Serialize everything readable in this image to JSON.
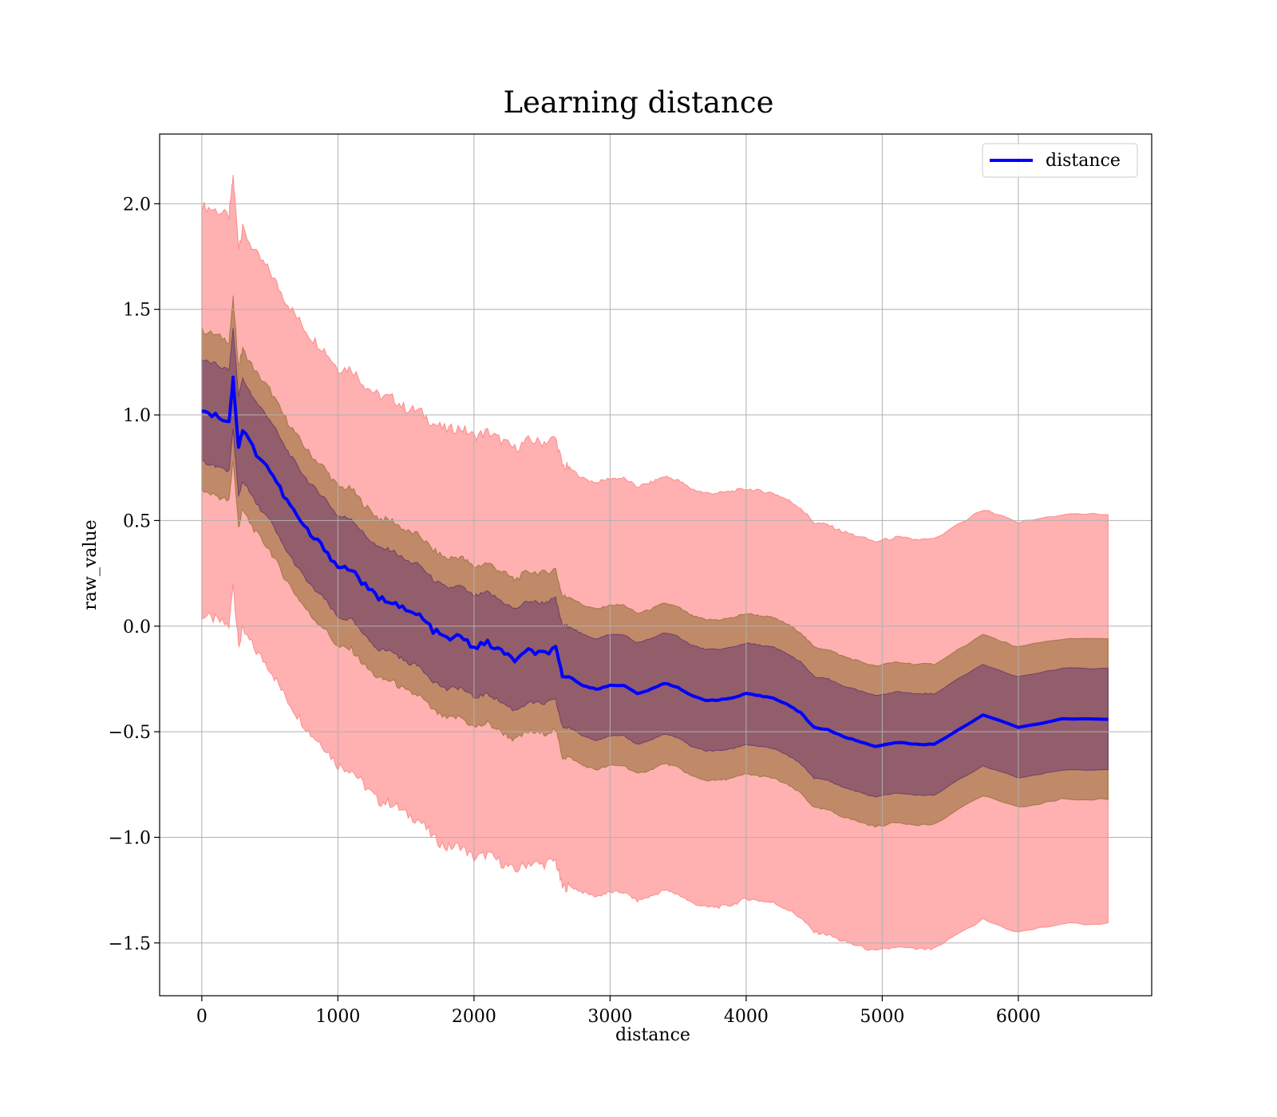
{
  "chart_data": {
    "type": "line",
    "title": "Learning distance",
    "xlabel": "distance",
    "ylabel": "raw_value",
    "xlim": [
      -310,
      6980
    ],
    "ylim": [
      -1.75,
      2.33
    ],
    "x_ticks": [
      0,
      1000,
      2000,
      3000,
      4000,
      5000,
      6000
    ],
    "x_tick_labels": [
      "0",
      "1000",
      "2000",
      "3000",
      "4000",
      "5000",
      "6000"
    ],
    "y_ticks": [
      -1.5,
      -1.0,
      -0.5,
      0.0,
      0.5,
      1.0,
      1.5,
      2.0
    ],
    "y_tick_labels": [
      "−1.5",
      "−1.0",
      "−0.5",
      "0.0",
      "0.5",
      "1.0",
      "1.5",
      "2.0"
    ],
    "grid": true,
    "legend_position": "upper right",
    "colors": {
      "line": "#0000ff",
      "band_outer": "#ff6f6f",
      "band_middle": "#8c6a2e",
      "band_inner": "#5a2a6e",
      "grid": "#b0b0b0"
    },
    "series": [
      {
        "name": "distance",
        "x": [
          0,
          100,
          200,
          230,
          270,
          300,
          400,
          500,
          600,
          700,
          800,
          900,
          1000,
          1100,
          1200,
          1300,
          1400,
          1500,
          1600,
          1700,
          1800,
          1900,
          2000,
          2100,
          2200,
          2300,
          2400,
          2500,
          2600,
          2650,
          2700,
          2800,
          2900,
          3000,
          3100,
          3200,
          3300,
          3400,
          3500,
          3600,
          3700,
          3800,
          3900,
          4000,
          4100,
          4200,
          4300,
          4400,
          4500,
          4600,
          4700,
          4800,
          4950,
          5100,
          5250,
          5380,
          5740,
          6000,
          6320,
          6660
        ],
        "values": [
          1.02,
          1.0,
          0.97,
          1.17,
          0.85,
          0.93,
          0.82,
          0.74,
          0.62,
          0.52,
          0.43,
          0.37,
          0.28,
          0.27,
          0.19,
          0.13,
          0.12,
          0.07,
          0.05,
          -0.02,
          -0.06,
          -0.05,
          -0.1,
          -0.08,
          -0.12,
          -0.16,
          -0.12,
          -0.13,
          -0.11,
          -0.24,
          -0.24,
          -0.28,
          -0.3,
          -0.28,
          -0.28,
          -0.32,
          -0.3,
          -0.27,
          -0.29,
          -0.33,
          -0.35,
          -0.35,
          -0.34,
          -0.32,
          -0.33,
          -0.34,
          -0.37,
          -0.41,
          -0.48,
          -0.49,
          -0.52,
          -0.54,
          -0.57,
          -0.55,
          -0.56,
          -0.56,
          -0.42,
          -0.48,
          -0.44,
          -0.44
        ],
        "band_outer_half_width": [
          0.97,
          0.97,
          0.97,
          0.96,
          0.95,
          0.95,
          0.94,
          0.94,
          0.94,
          0.94,
          0.94,
          0.94,
          0.94,
          0.95,
          0.95,
          0.96,
          0.96,
          0.96,
          0.97,
          0.98,
          0.99,
          0.99,
          1.0,
          1.0,
          1.0,
          1.0,
          1.0,
          1.0,
          1.0,
          1.0,
          0.99,
          0.98,
          0.98,
          0.98,
          0.98,
          0.98,
          0.98,
          0.98,
          0.98,
          0.98,
          0.98,
          0.98,
          0.98,
          0.97,
          0.97,
          0.97,
          0.97,
          0.97,
          0.97,
          0.97,
          0.97,
          0.97,
          0.97,
          0.97,
          0.97,
          0.97,
          0.97,
          0.97,
          0.97,
          0.97
        ],
        "band_middle_half_width": [
          0.38,
          0.38,
          0.38,
          0.38,
          0.38,
          0.38,
          0.38,
          0.38,
          0.38,
          0.38,
          0.38,
          0.38,
          0.38,
          0.38,
          0.38,
          0.38,
          0.38,
          0.38,
          0.38,
          0.38,
          0.38,
          0.38,
          0.38,
          0.38,
          0.38,
          0.38,
          0.38,
          0.38,
          0.38,
          0.38,
          0.38,
          0.38,
          0.38,
          0.38,
          0.38,
          0.38,
          0.38,
          0.38,
          0.38,
          0.38,
          0.38,
          0.38,
          0.38,
          0.38,
          0.38,
          0.38,
          0.38,
          0.38,
          0.38,
          0.38,
          0.38,
          0.38,
          0.38,
          0.38,
          0.38,
          0.38,
          0.38,
          0.38,
          0.38,
          0.38
        ],
        "band_inner_half_width": [
          0.24,
          0.24,
          0.24,
          0.24,
          0.24,
          0.24,
          0.24,
          0.24,
          0.24,
          0.24,
          0.24,
          0.24,
          0.24,
          0.24,
          0.24,
          0.24,
          0.24,
          0.24,
          0.24,
          0.24,
          0.24,
          0.24,
          0.24,
          0.24,
          0.24,
          0.24,
          0.24,
          0.24,
          0.24,
          0.24,
          0.24,
          0.24,
          0.24,
          0.24,
          0.24,
          0.24,
          0.24,
          0.24,
          0.24,
          0.24,
          0.24,
          0.24,
          0.24,
          0.24,
          0.24,
          0.24,
          0.24,
          0.24,
          0.24,
          0.24,
          0.24,
          0.24,
          0.24,
          0.24,
          0.24,
          0.24,
          0.24,
          0.24,
          0.24,
          0.24
        ]
      }
    ]
  }
}
